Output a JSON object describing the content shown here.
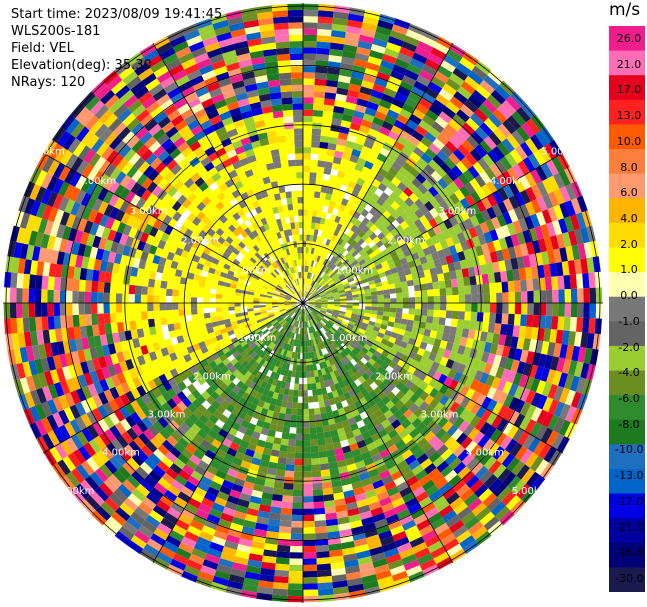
{
  "info": {
    "start_time": "Start time: 2023/08/09 19:41:45",
    "instrument": "WLS200s-181",
    "field": "Field: VEL",
    "elevation": "Elevation(deg): 35.30",
    "nrays": "NRays: 120"
  },
  "chart_data": {
    "type": "ppi",
    "field": "VEL",
    "elevation_deg": 35.3,
    "nrays": 120,
    "range_rings_km": [
      1.0,
      2.0,
      3.0,
      4.0,
      5.0
    ],
    "ring_labels": [
      "1.00km",
      "2.00km",
      "3.00km",
      "4.00km",
      "5.00km"
    ],
    "max_range_km": 5.05,
    "colorbar": {
      "unit": "m/s",
      "ticks": [
        "26.0",
        "21.0",
        "17.0",
        "13.0",
        "10.0",
        "8.0",
        "6.0",
        "4.0",
        "2.0",
        "1.0",
        "0.0",
        "-1.0",
        "-2.0",
        "-4.0",
        "-6.0",
        "-8.0",
        "-10.0",
        "-13.0",
        "-17.0",
        "-21.0",
        "-26.0",
        "-30.0"
      ],
      "colors": [
        "#f01e8c",
        "#ff6eb4",
        "#e6001e",
        "#ff2020",
        "#ff5a00",
        "#ff7e3c",
        "#ff9a6e",
        "#ffb400",
        "#ffdc00",
        "#ffff00",
        "#ffffb0",
        "#787878",
        "#646464",
        "#9acd32",
        "#6b8e23",
        "#2e8b2e",
        "#1e7a1e",
        "#1e6fbf",
        "#0064c8",
        "#0000e6",
        "#0000a0",
        "#000078",
        "#1a1a50"
      ]
    }
  }
}
